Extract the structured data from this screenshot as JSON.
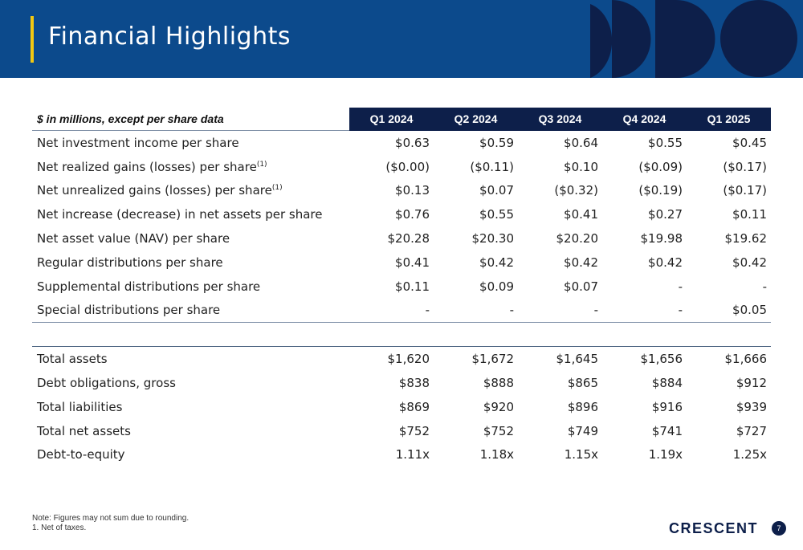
{
  "header": {
    "title": "Financial Highlights"
  },
  "table": {
    "label_header": "$ in millions, except per share data",
    "columns": [
      "Q1 2024",
      "Q2 2024",
      "Q3 2024",
      "Q4 2024",
      "Q1 2025"
    ],
    "per_share_rows": [
      {
        "label": "Net investment income per share",
        "sup": "",
        "values": [
          "$0.63",
          "$0.59",
          "$0.64",
          "$0.55",
          "$0.45"
        ]
      },
      {
        "label": "Net realized gains (losses) per share",
        "sup": "(1)",
        "values": [
          "($0.00)",
          "($0.11)",
          "$0.10",
          "($0.09)",
          "($0.17)"
        ]
      },
      {
        "label": "Net unrealized gains (losses) per share",
        "sup": "(1)",
        "values": [
          "$0.13",
          "$0.07",
          "($0.32)",
          "($0.19)",
          "($0.17)"
        ]
      },
      {
        "label": "Net increase (decrease) in net assets per share",
        "sup": "",
        "values": [
          "$0.76",
          "$0.55",
          "$0.41",
          "$0.27",
          "$0.11"
        ]
      },
      {
        "label": "Net asset value (NAV) per share",
        "sup": "",
        "values": [
          "$20.28",
          "$20.30",
          "$20.20",
          "$19.98",
          "$19.62"
        ]
      },
      {
        "label": "Regular distributions per share",
        "sup": "",
        "values": [
          "$0.41",
          "$0.42",
          "$0.42",
          "$0.42",
          "$0.42"
        ]
      },
      {
        "label": "Supplemental distributions per share",
        "sup": "",
        "values": [
          "$0.11",
          "$0.09",
          "$0.07",
          "-",
          "-"
        ]
      },
      {
        "label": "Special distributions per share",
        "sup": "",
        "values": [
          "-",
          "-",
          "-",
          "-",
          "$0.05"
        ]
      }
    ],
    "balance_rows": [
      {
        "label": "Total assets",
        "values": [
          "$1,620",
          "$1,672",
          "$1,645",
          "$1,656",
          "$1,666"
        ]
      },
      {
        "label": "Debt obligations, gross",
        "values": [
          "$838",
          "$888",
          "$865",
          "$884",
          "$912"
        ]
      },
      {
        "label": "Total liabilities",
        "values": [
          "$869",
          "$920",
          "$896",
          "$916",
          "$939"
        ]
      },
      {
        "label": "Total net assets",
        "values": [
          "$752",
          "$752",
          "$749",
          "$741",
          "$727"
        ]
      },
      {
        "label": "Debt-to-equity",
        "values": [
          "1.11x",
          "1.18x",
          "1.15x",
          "1.19x",
          "1.25x"
        ]
      }
    ]
  },
  "footnotes": [
    "Note: Figures may not sum due to rounding.",
    "1.  Net of taxes."
  ],
  "footer": {
    "logo_text": "CRESCENT",
    "page_number": "7"
  },
  "colors": {
    "header_bg": "#0c4a8c",
    "navy": "#0d1f4a",
    "accent": "#f2c811"
  }
}
